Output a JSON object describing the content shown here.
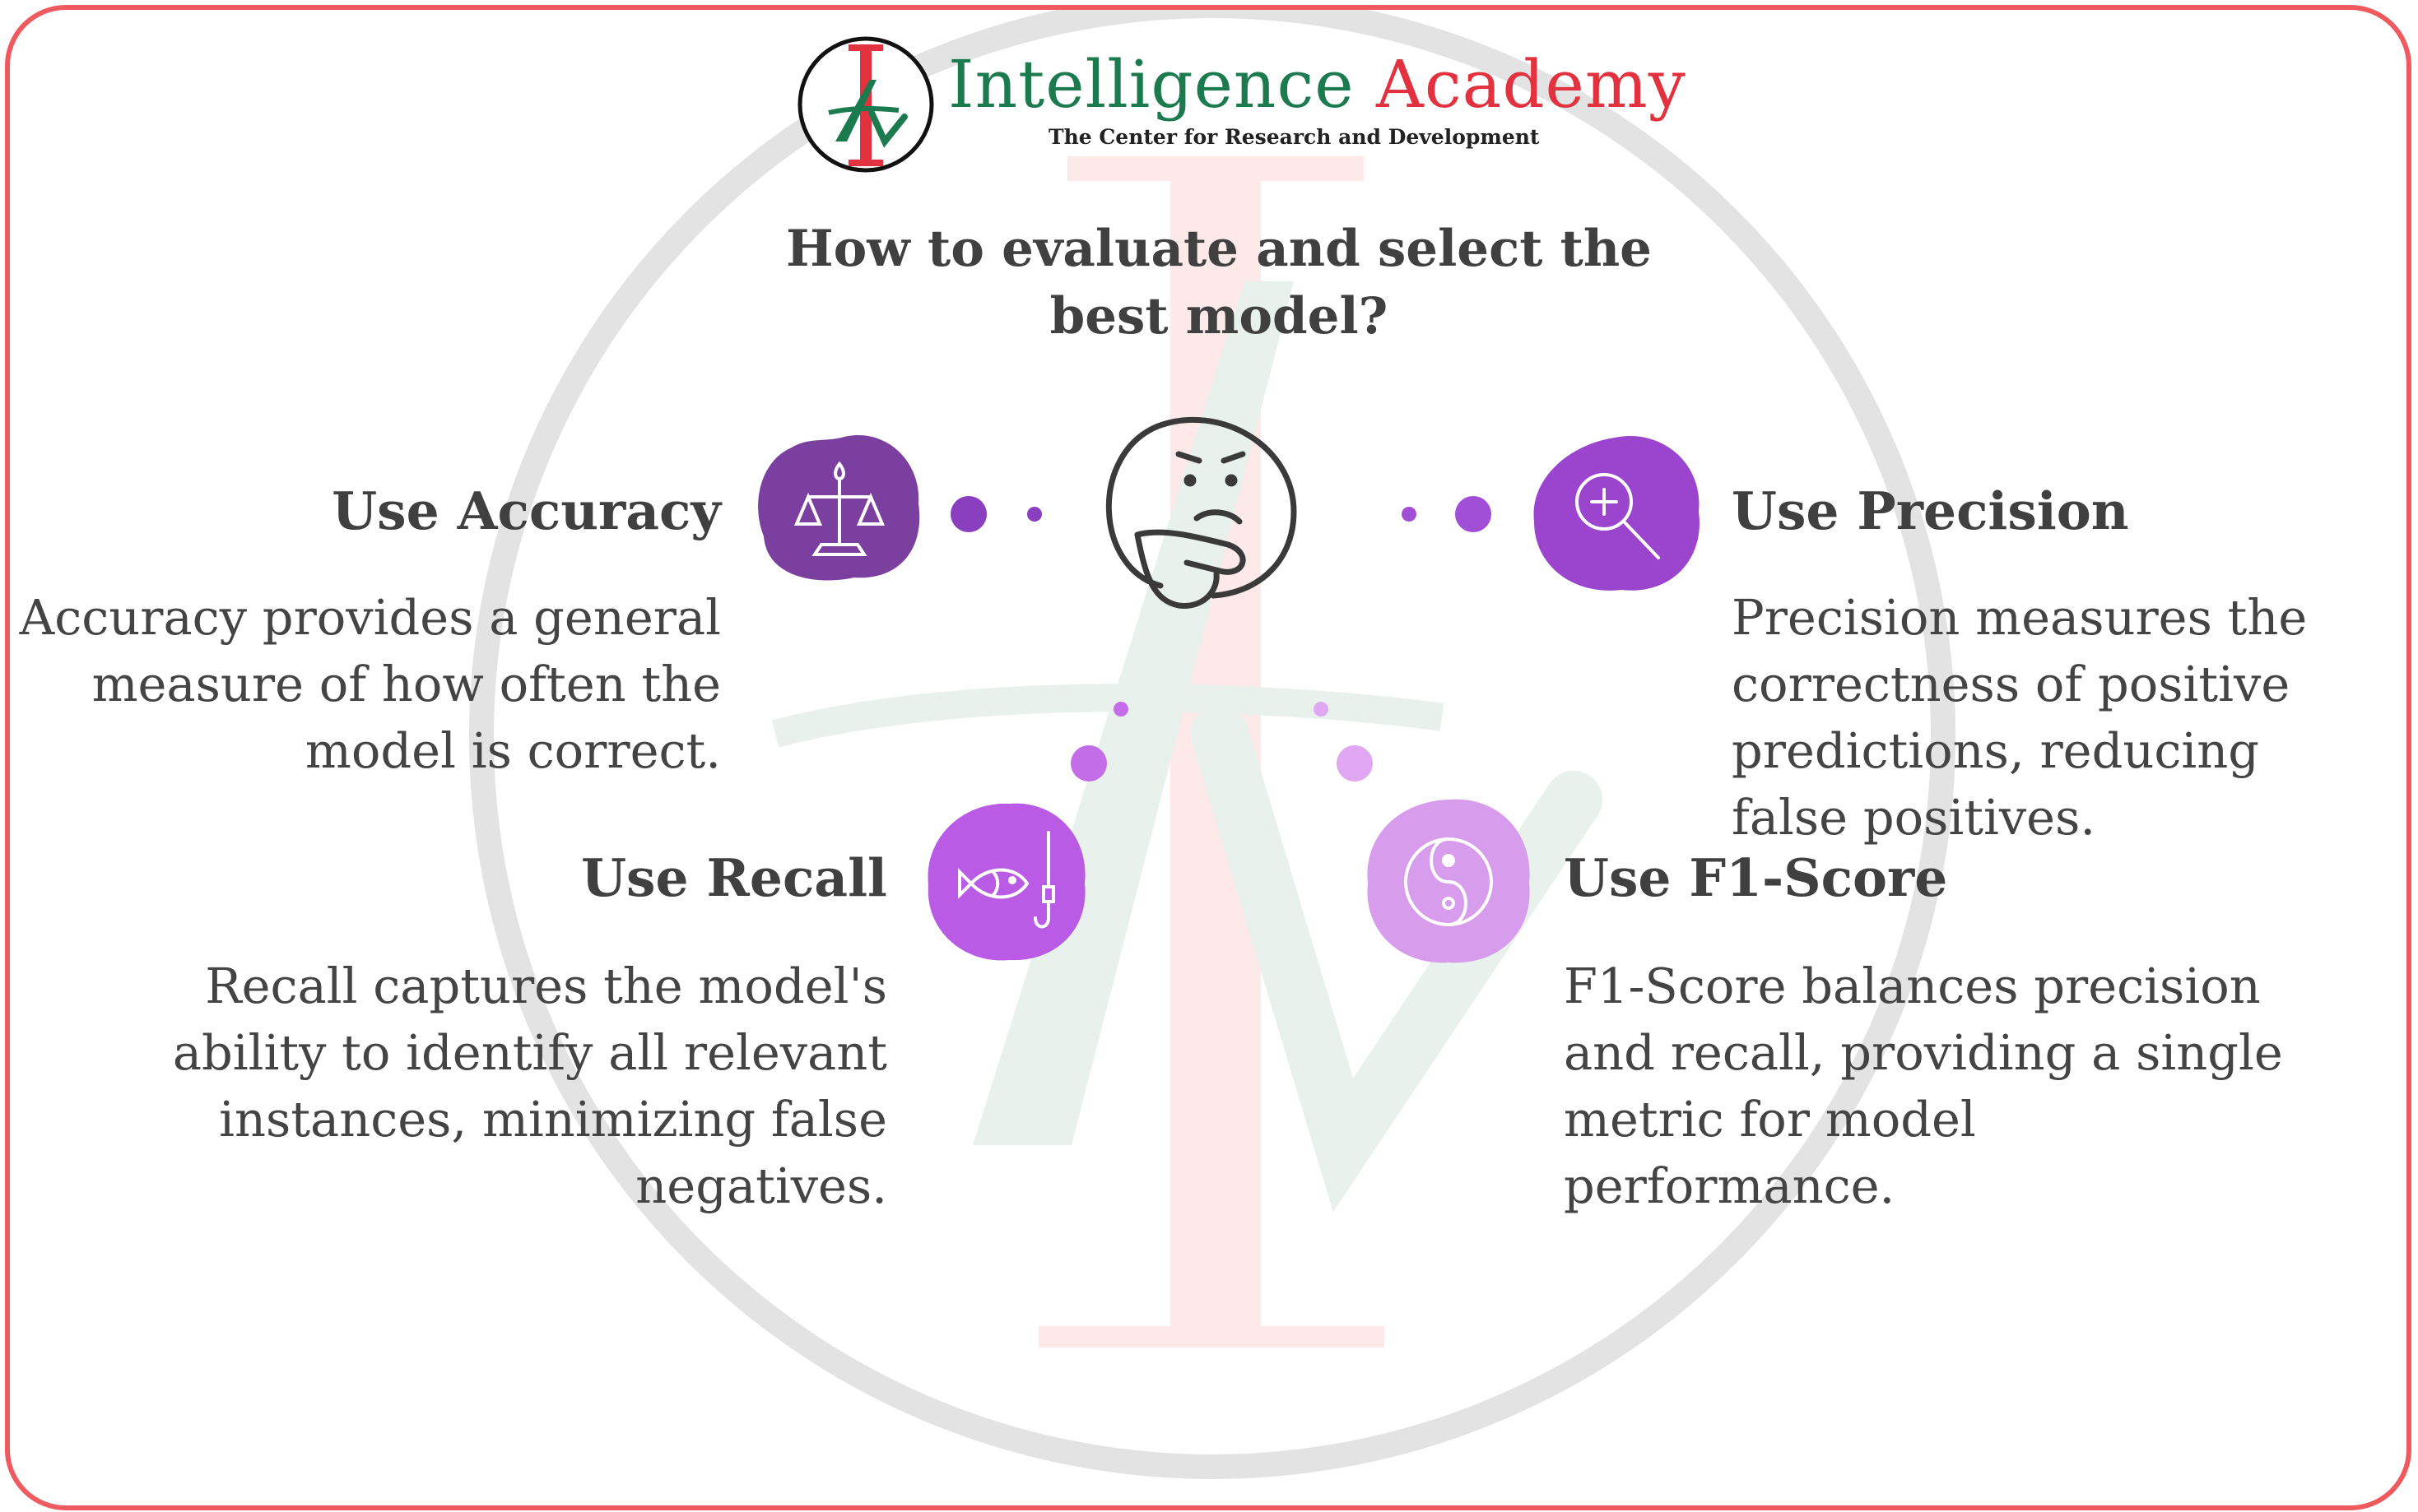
{
  "brand": {
    "name_part1": "Intelligence",
    "name_part2": "Academy",
    "tagline": "The Center for Research and Development",
    "color_green": "#1c7a4f",
    "color_red": "#e2323f"
  },
  "title": "How to evaluate and select the best model?",
  "center_icon": "thinking-face-icon",
  "items": [
    {
      "heading": "Use Accuracy",
      "description": "Accuracy provides a general measure of how often the model is correct.",
      "icon": "balance-scale-icon",
      "color": "#7b3fa0"
    },
    {
      "heading": "Use Precision",
      "description": "Precision measures the correctness of positive predictions, reducing false positives.",
      "icon": "magnifier-plus-icon",
      "color": "#9b45cf"
    },
    {
      "heading": "Use Recall",
      "description": "Recall captures the model's ability to identify all relevant instances, minimizing false negatives.",
      "icon": "fish-hook-icon",
      "color": "#b95be4"
    },
    {
      "heading": "Use F1-Score",
      "description": "F1-Score balances precision and recall, providing a single metric for model performance.",
      "icon": "yin-yang-icon",
      "color": "#d79cec"
    }
  ],
  "colors": {
    "frame": "#ee5a5e",
    "text": "#404040"
  }
}
